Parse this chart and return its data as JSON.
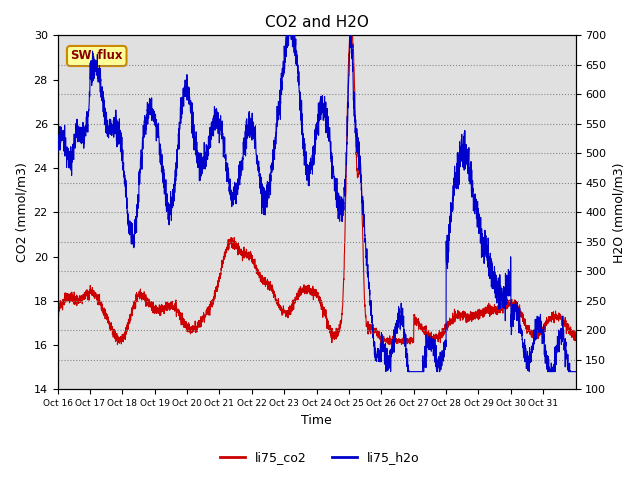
{
  "title": "CO2 and H2O",
  "xlabel": "Time",
  "ylabel_left": "CO2 (mmol/m3)",
  "ylabel_right": "H2O (mmol/m3)",
  "ylim_left": [
    14,
    30
  ],
  "ylim_right": [
    100,
    700
  ],
  "yticks_left": [
    14,
    16,
    18,
    20,
    22,
    24,
    26,
    28,
    30
  ],
  "yticks_right": [
    100,
    150,
    200,
    250,
    300,
    350,
    400,
    450,
    500,
    550,
    600,
    650,
    700
  ],
  "xtick_labels": [
    "Oct 16",
    "Oct 17",
    "Oct 18",
    "Oct 19",
    "Oct 20",
    "Oct 21",
    "Oct 22",
    "Oct 23",
    "Oct 24",
    "Oct 25",
    "Oct 26",
    "Oct 27",
    "Oct 28",
    "Oct 29",
    "Oct 30",
    "Oct 31"
  ],
  "color_co2": "#cc0000",
  "color_h2o": "#0000cc",
  "background_color": "#e0e0e0",
  "sw_flux_label": "SW_flux",
  "sw_flux_bg": "#ffff99",
  "sw_flux_border": "#cc8800",
  "sw_flux_text_color": "#880000",
  "legend_co2": "li75_co2",
  "legend_h2o": "li75_h2o",
  "title_fontsize": 11,
  "axis_fontsize": 9,
  "tick_fontsize": 8
}
